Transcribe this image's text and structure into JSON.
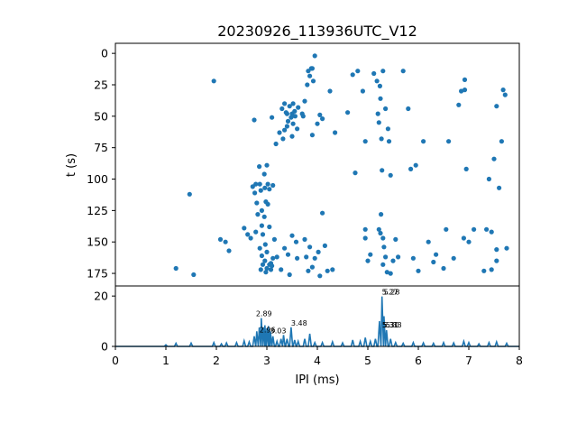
{
  "chart_data": [
    {
      "type": "scatter",
      "title": "20230926_113936UTC_V12",
      "ylabel": "t (s)",
      "xlim": [
        0,
        8
      ],
      "ylim": [
        185,
        -8
      ],
      "y_inverted": true,
      "yticks": [
        0,
        25,
        50,
        75,
        100,
        125,
        150,
        175
      ],
      "color": "#1f77b4",
      "points": [
        [
          1.2,
          171
        ],
        [
          1.47,
          112
        ],
        [
          1.55,
          176
        ],
        [
          1.95,
          22
        ],
        [
          2.08,
          148
        ],
        [
          2.18,
          150
        ],
        [
          2.25,
          157
        ],
        [
          2.55,
          139
        ],
        [
          2.62,
          144
        ],
        [
          2.68,
          147
        ],
        [
          2.75,
          53
        ],
        [
          2.72,
          106
        ],
        [
          2.76,
          111
        ],
        [
          2.78,
          104
        ],
        [
          2.8,
          119
        ],
        [
          2.82,
          128
        ],
        [
          2.78,
          142
        ],
        [
          2.85,
          90
        ],
        [
          2.86,
          104
        ],
        [
          2.88,
          109
        ],
        [
          2.9,
          125
        ],
        [
          2.9,
          137
        ],
        [
          2.92,
          144
        ],
        [
          2.86,
          155
        ],
        [
          2.9,
          161
        ],
        [
          2.95,
          96
        ],
        [
          2.96,
          107
        ],
        [
          2.98,
          118
        ],
        [
          2.95,
          130
        ],
        [
          2.97,
          152
        ],
        [
          2.96,
          165
        ],
        [
          3.0,
          89
        ],
        [
          3.02,
          104
        ],
        [
          3.05,
          108
        ],
        [
          3.02,
          120
        ],
        [
          3.05,
          138
        ],
        [
          3.0,
          158
        ],
        [
          3.08,
          167
        ],
        [
          3.1,
          51
        ],
        [
          3.12,
          105
        ],
        [
          3.15,
          148
        ],
        [
          3.2,
          162
        ],
        [
          3.0,
          171
        ],
        [
          3.05,
          168
        ],
        [
          2.92,
          168
        ],
        [
          3.1,
          169
        ],
        [
          3.08,
          172
        ],
        [
          2.88,
          172
        ],
        [
          2.98,
          174
        ],
        [
          3.12,
          163
        ],
        [
          3.18,
          72
        ],
        [
          3.25,
          63
        ],
        [
          3.28,
          172
        ],
        [
          3.3,
          44
        ],
        [
          3.32,
          68
        ],
        [
          3.35,
          61
        ],
        [
          3.35,
          40
        ],
        [
          3.38,
          47
        ],
        [
          3.4,
          58
        ],
        [
          3.42,
          54
        ],
        [
          3.4,
          48
        ],
        [
          3.45,
          42
        ],
        [
          3.48,
          51
        ],
        [
          3.5,
          66
        ],
        [
          3.5,
          48
        ],
        [
          3.52,
          40
        ],
        [
          3.55,
          46
        ],
        [
          3.52,
          56
        ],
        [
          3.56,
          50
        ],
        [
          3.6,
          60
        ],
        [
          3.62,
          43
        ],
        [
          3.35,
          155
        ],
        [
          3.42,
          160
        ],
        [
          3.5,
          145
        ],
        [
          3.45,
          176
        ],
        [
          3.58,
          150
        ],
        [
          3.6,
          163
        ],
        [
          3.7,
          48
        ],
        [
          3.72,
          50
        ],
        [
          3.75,
          38
        ],
        [
          3.8,
          25
        ],
        [
          3.82,
          14
        ],
        [
          3.85,
          18
        ],
        [
          3.88,
          12
        ],
        [
          3.9,
          65
        ],
        [
          3.92,
          22
        ],
        [
          3.9,
          12
        ],
        [
          3.95,
          2
        ],
        [
          4.0,
          56
        ],
        [
          4.02,
          158
        ],
        [
          4.05,
          49
        ],
        [
          4.1,
          52
        ],
        [
          4.1,
          127
        ],
        [
          4.15,
          153
        ],
        [
          4.25,
          30
        ],
        [
          4.3,
          172
        ],
        [
          4.35,
          63
        ],
        [
          3.75,
          148
        ],
        [
          3.78,
          162
        ],
        [
          3.82,
          173
        ],
        [
          3.85,
          154
        ],
        [
          3.9,
          170
        ],
        [
          3.95,
          163
        ],
        [
          4.05,
          177
        ],
        [
          4.2,
          173
        ],
        [
          4.6,
          47
        ],
        [
          4.7,
          17
        ],
        [
          4.75,
          95
        ],
        [
          4.8,
          14
        ],
        [
          4.9,
          30
        ],
        [
          4.95,
          70
        ],
        [
          4.95,
          140
        ],
        [
          5.0,
          165
        ],
        [
          5.05,
          160
        ],
        [
          4.95,
          147
        ],
        [
          5.12,
          16
        ],
        [
          5.18,
          22
        ],
        [
          5.2,
          48
        ],
        [
          5.22,
          55
        ],
        [
          5.24,
          26
        ],
        [
          5.25,
          36
        ],
        [
          5.27,
          68
        ],
        [
          5.28,
          93
        ],
        [
          5.26,
          128
        ],
        [
          5.22,
          140
        ],
        [
          5.25,
          143
        ],
        [
          5.3,
          147
        ],
        [
          5.32,
          154
        ],
        [
          5.35,
          162
        ],
        [
          5.38,
          174
        ],
        [
          5.3,
          14
        ],
        [
          5.35,
          44
        ],
        [
          5.4,
          60
        ],
        [
          5.42,
          70
        ],
        [
          5.45,
          97
        ],
        [
          5.3,
          168
        ],
        [
          5.45,
          175
        ],
        [
          5.5,
          165
        ],
        [
          5.55,
          148
        ],
        [
          5.6,
          162
        ],
        [
          5.7,
          14
        ],
        [
          5.8,
          44
        ],
        [
          5.85,
          92
        ],
        [
          5.95,
          89
        ],
        [
          5.9,
          163
        ],
        [
          6.0,
          173
        ],
        [
          6.1,
          70
        ],
        [
          6.2,
          150
        ],
        [
          6.3,
          166
        ],
        [
          6.35,
          160
        ],
        [
          6.5,
          171
        ],
        [
          6.55,
          140
        ],
        [
          6.6,
          70
        ],
        [
          6.7,
          163
        ],
        [
          6.8,
          41
        ],
        [
          6.85,
          30
        ],
        [
          6.9,
          147
        ],
        [
          6.92,
          21
        ],
        [
          6.92,
          29
        ],
        [
          6.95,
          92
        ],
        [
          7.0,
          150
        ],
        [
          7.1,
          140
        ],
        [
          7.35,
          140
        ],
        [
          7.45,
          142
        ],
        [
          7.4,
          100
        ],
        [
          7.5,
          84
        ],
        [
          7.45,
          172
        ],
        [
          7.55,
          42
        ],
        [
          7.55,
          156
        ],
        [
          7.6,
          107
        ],
        [
          7.68,
          29
        ],
        [
          7.72,
          33
        ],
        [
          7.75,
          155
        ],
        [
          7.65,
          70
        ],
        [
          7.3,
          173
        ],
        [
          7.55,
          165
        ]
      ]
    },
    {
      "type": "line",
      "xlabel": "IPI (ms)",
      "xlim": [
        0,
        8
      ],
      "ylim": [
        0,
        24
      ],
      "xticks": [
        0,
        1,
        2,
        3,
        4,
        5,
        6,
        7,
        8
      ],
      "yticks": [
        0,
        20
      ],
      "color": "#1f77b4",
      "peaks": [
        [
          1.0,
          0.6
        ],
        [
          1.2,
          1.2
        ],
        [
          1.5,
          1.3
        ],
        [
          1.95,
          1.5
        ],
        [
          2.1,
          1.0
        ],
        [
          2.2,
          1.4
        ],
        [
          2.4,
          1.5
        ],
        [
          2.55,
          2.2
        ],
        [
          2.65,
          1.8
        ],
        [
          2.75,
          4.0
        ],
        [
          2.8,
          6.0
        ],
        [
          2.85,
          7.5
        ],
        [
          2.89,
          11.2
        ],
        [
          2.93,
          7.6
        ],
        [
          2.96,
          8.4
        ],
        [
          3.0,
          7.2
        ],
        [
          3.03,
          8.1
        ],
        [
          3.07,
          6.0
        ],
        [
          3.12,
          4.0
        ],
        [
          3.2,
          2.0
        ],
        [
          3.28,
          3.0
        ],
        [
          3.33,
          4.5
        ],
        [
          3.4,
          3.0
        ],
        [
          3.48,
          7.6
        ],
        [
          3.55,
          2.5
        ],
        [
          3.62,
          2.0
        ],
        [
          3.75,
          3.0
        ],
        [
          3.85,
          5.0
        ],
        [
          3.95,
          1.5
        ],
        [
          4.1,
          1.5
        ],
        [
          4.3,
          1.8
        ],
        [
          4.5,
          1.4
        ],
        [
          4.7,
          2.5
        ],
        [
          4.85,
          2.0
        ],
        [
          4.95,
          3.5
        ],
        [
          5.05,
          2.0
        ],
        [
          5.15,
          3.0
        ],
        [
          5.23,
          10.0
        ],
        [
          5.28,
          19.8
        ],
        [
          5.32,
          12.0
        ],
        [
          5.37,
          6.5
        ],
        [
          5.45,
          3.0
        ],
        [
          5.55,
          1.5
        ],
        [
          5.7,
          1.2
        ],
        [
          5.9,
          1.5
        ],
        [
          6.1,
          1.4
        ],
        [
          6.3,
          1.2
        ],
        [
          6.5,
          1.5
        ],
        [
          6.7,
          1.4
        ],
        [
          6.9,
          2.0
        ],
        [
          7.0,
          1.5
        ],
        [
          7.2,
          1.0
        ],
        [
          7.4,
          1.5
        ],
        [
          7.55,
          1.8
        ],
        [
          7.75,
          1.2
        ]
      ],
      "annotations": [
        {
          "x": 2.89,
          "y": 11.2,
          "text": "2.89"
        },
        {
          "x": 2.96,
          "y": 8.4,
          "text": "2.96"
        },
        {
          "x": 3.03,
          "y": 8.1,
          "text": "3.03"
        },
        {
          "x": 3.48,
          "y": 7.6,
          "text": "3.48"
        },
        {
          "x": 5.28,
          "y": 19.8,
          "text": "5.27"
        },
        {
          "x": 5.28,
          "y": 19.8,
          "text": "5.28"
        },
        {
          "x": 5.32,
          "y": 7.6,
          "text": "5.31"
        },
        {
          "x": 5.32,
          "y": 7.6,
          "text": "5.30"
        },
        {
          "x": 5.32,
          "y": 7.6,
          "text": "5.33"
        }
      ]
    }
  ]
}
